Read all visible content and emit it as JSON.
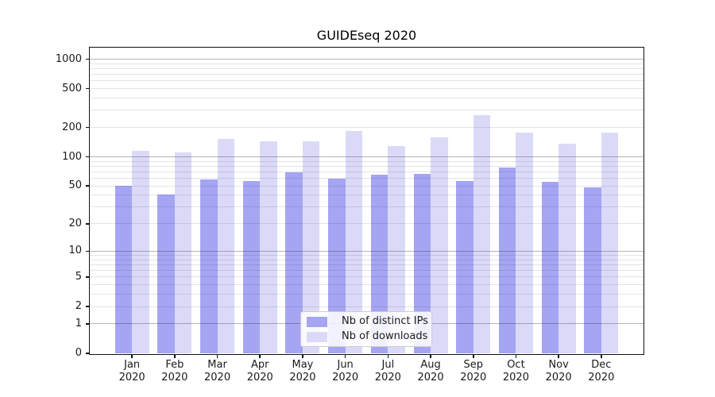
{
  "chart_data": {
    "type": "bar",
    "title": "GUIDEseq 2020",
    "yscale": "log1p (symlog-like, log10 of 1+value)",
    "ylim": [
      0,
      1310
    ],
    "yticks": [
      0,
      1,
      2,
      5,
      10,
      20,
      50,
      100,
      200,
      500,
      1000
    ],
    "ytick_labels": [
      "0",
      "1",
      "2",
      "5",
      "10",
      "20",
      "50",
      "100",
      "200",
      "500",
      "1000"
    ],
    "xlabel": "",
    "ylabel": "",
    "grid": "horizontal, major decade lines darker, minor log lines lighter, drawn over bars",
    "legend_position": "inside bottom-center",
    "categories": [
      "Jan 2020",
      "Feb 2020",
      "Mar 2020",
      "Apr 2020",
      "May 2020",
      "Jun 2020",
      "Jul 2020",
      "Aug 2020",
      "Sep 2020",
      "Oct 2020",
      "Nov 2020",
      "Dec 2020"
    ],
    "series": [
      {
        "name": "Nb of distinct IPs",
        "color": "#a5a5f3",
        "values": [
          50,
          41,
          58,
          56,
          69,
          59,
          66,
          67,
          56,
          78,
          55,
          48
        ]
      },
      {
        "name": "Nb of downloads",
        "color": "#dadaf8",
        "values": [
          116,
          111,
          154,
          143,
          145,
          185,
          130,
          160,
          270,
          178,
          137,
          177
        ]
      }
    ]
  },
  "colors": {
    "background": "#ffffff",
    "axis_frame": "#111111",
    "text": "#1a1a1a",
    "major_grid": "rgba(40,40,40,0.34)",
    "minor_grid": "rgba(0,0,0,0.10)",
    "legend_border": "#cccccc"
  }
}
